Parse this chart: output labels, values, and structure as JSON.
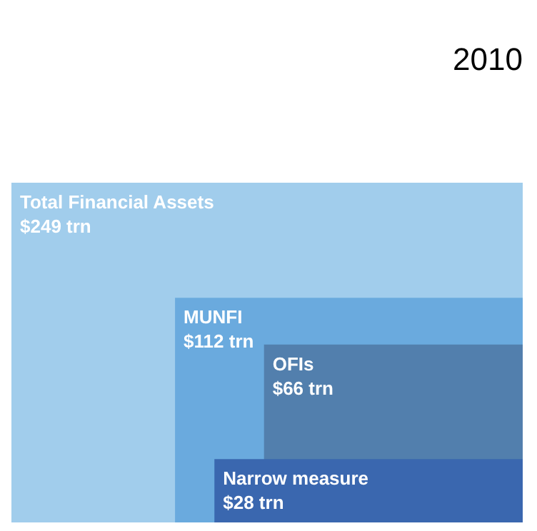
{
  "chart_data": {
    "type": "other",
    "title": "2010",
    "categories": [
      "Total Financial Assets",
      "MUNFI",
      "OFIs",
      "Narrow measure"
    ],
    "values": [
      249,
      112,
      66,
      28
    ],
    "value_labels": [
      "$249 trn",
      "$112 trn",
      "$66 trn",
      "$28 trn"
    ],
    "colors": [
      "#a1cdec",
      "#6aaade",
      "#527fad",
      "#3a67af"
    ]
  }
}
